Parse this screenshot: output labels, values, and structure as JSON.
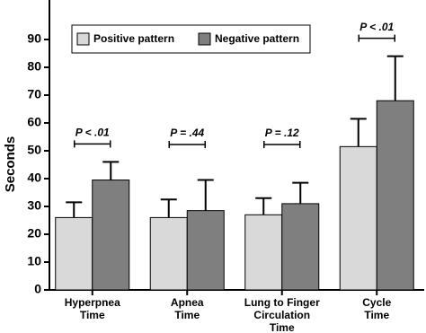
{
  "chart_data": {
    "type": "bar",
    "y_label": "Seconds",
    "categories": [
      [
        "Hyperpnea",
        "Time"
      ],
      [
        "Apnea",
        "Time"
      ],
      [
        "Lung to Finger",
        "Circulation",
        "Time"
      ],
      [
        "Cycle",
        "Time"
      ]
    ],
    "series": [
      {
        "name": "Positive pattern",
        "color": "#d9d9d9",
        "values": [
          26,
          26,
          27,
          51.5
        ],
        "errors": [
          5.5,
          6.5,
          6,
          10
        ]
      },
      {
        "name": "Negative pattern",
        "color": "#7f7f7f",
        "values": [
          39.5,
          28.5,
          31,
          68
        ],
        "errors": [
          6.5,
          11,
          7.5,
          16
        ]
      }
    ],
    "annotations": [
      "P < .01",
      "P = .44",
      "P = .12",
      "P < .01"
    ],
    "ylim": [
      0,
      100
    ],
    "yticks": [
      0,
      10,
      20,
      30,
      40,
      50,
      60,
      70,
      80,
      90
    ],
    "legend": "top-left",
    "grid": false
  }
}
